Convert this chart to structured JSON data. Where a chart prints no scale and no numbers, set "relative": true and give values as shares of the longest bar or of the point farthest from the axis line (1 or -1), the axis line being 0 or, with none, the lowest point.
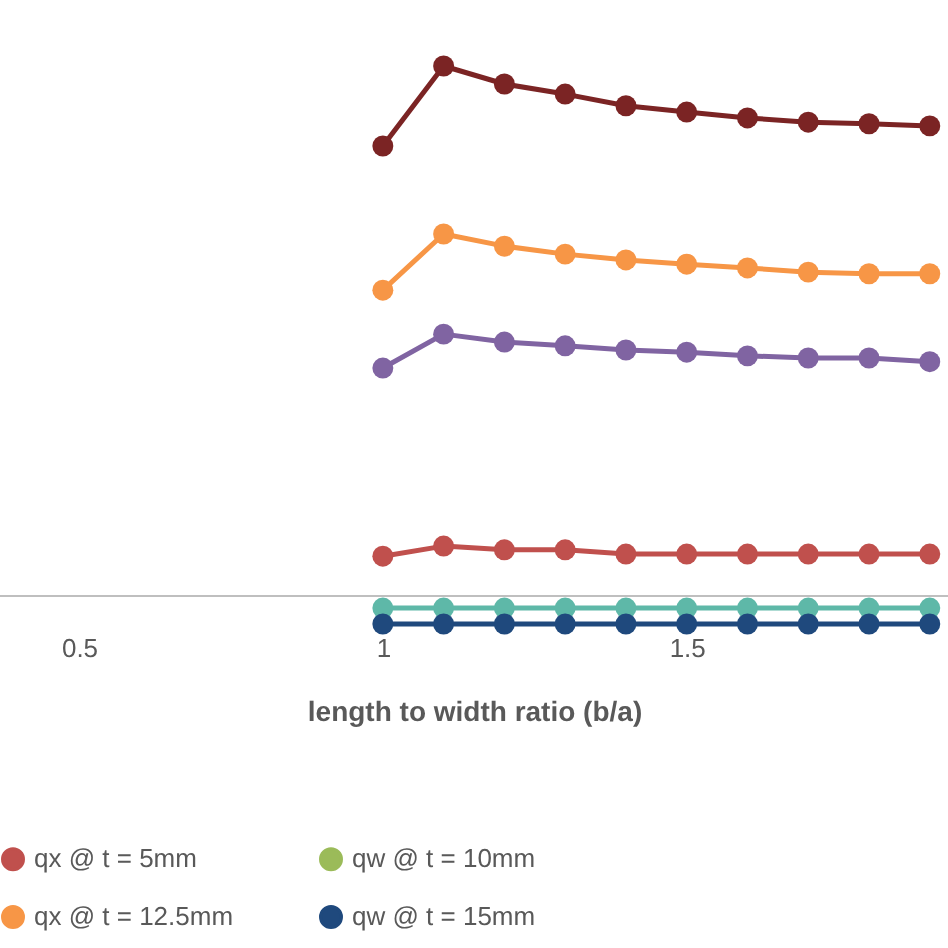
{
  "chart_data": {
    "type": "line",
    "xlabel": "length to width ratio (b/a)",
    "relative": true,
    "marker": "circle",
    "legend": "bottom",
    "grid": false,
    "x": [
      1,
      1.1,
      1.2,
      1.3,
      1.4,
      1.5,
      1.6,
      1.7,
      1.8,
      1.9
    ],
    "xlim": [
      0.37,
      1.93
    ],
    "xticks": [
      0.5,
      {
        "value": 1,
        "label": "1"
      },
      1.5
    ],
    "series": [
      {
        "color": "#7b2424",
        "values": [
          0.849,
          1.0,
          0.966,
          0.947,
          0.925,
          0.913,
          0.902,
          0.894,
          0.891,
          0.887
        ]
      },
      {
        "color": "#8064a2",
        "values": [
          0.43,
          0.494,
          0.479,
          0.472,
          0.464,
          0.46,
          0.453,
          0.449,
          0.449,
          0.442
        ]
      },
      {
        "name": "qx @ t = 5mm",
        "color": "#c0504d",
        "values": [
          0.075,
          0.094,
          0.087,
          0.087,
          0.079,
          0.079,
          0.079,
          0.079,
          0.079,
          0.079
        ]
      },
      {
        "name": "qw @ t = 10mm",
        "color": "#9bbb59",
        "values": [
          null,
          null,
          null,
          null,
          null,
          null,
          null,
          null,
          null,
          null
        ]
      },
      {
        "name": "qx @ t = 12.5mm",
        "color": "#f79646",
        "values": [
          0.577,
          0.683,
          0.66,
          0.645,
          0.634,
          0.626,
          0.619,
          0.611,
          0.608,
          0.608
        ]
      },
      {
        "color": "#5eb8a8",
        "values": [
          -0.023,
          -0.023,
          -0.023,
          -0.023,
          -0.023,
          -0.023,
          -0.023,
          -0.023,
          -0.023,
          -0.023
        ]
      },
      {
        "name": "qw @ t = 15mm",
        "color": "#1f497d",
        "values": [
          -0.053,
          -0.053,
          -0.053,
          -0.053,
          -0.053,
          -0.053,
          -0.053,
          -0.053,
          -0.053,
          -0.053
        ]
      }
    ]
  }
}
